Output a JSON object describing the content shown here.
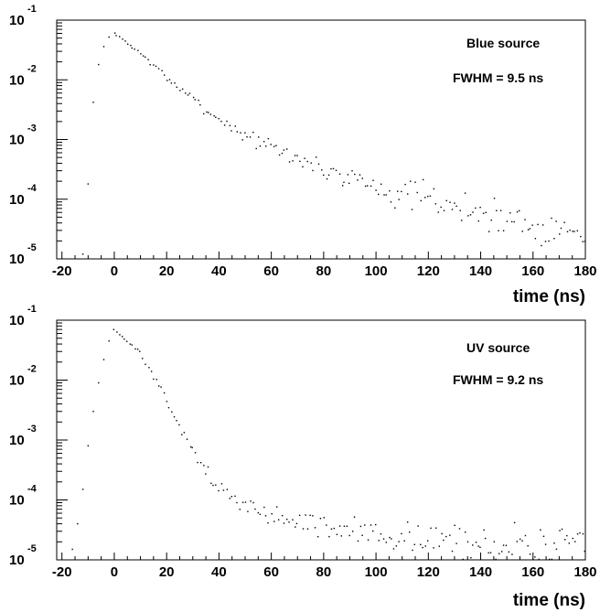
{
  "chart_data": [
    {
      "type": "scatter",
      "title": "",
      "xlabel": "time (ns)",
      "ylabel": "",
      "xlim": [
        -22,
        180
      ],
      "ylim": [
        1e-05,
        0.1
      ],
      "yscale": "log",
      "grid": false,
      "legend": "none",
      "annotations": [
        "Blue source",
        "FWHM = 9.5 ns"
      ],
      "x_ticks": [
        "-20",
        "0",
        "20",
        "40",
        "60",
        "80",
        "100",
        "120",
        "140",
        "160",
        "180"
      ],
      "y_ticks": [
        {
          "base": "10",
          "exp": "-5"
        },
        {
          "base": "10",
          "exp": "-4"
        },
        {
          "base": "10",
          "exp": "-3"
        },
        {
          "base": "10",
          "exp": "-2"
        },
        {
          "base": "10",
          "exp": "-1"
        }
      ],
      "peak": {
        "x": 0,
        "y": 0.06
      },
      "fwhm_ns": 9.5,
      "rise_points": [
        [
          -12,
          1.2e-05
        ],
        [
          -10,
          0.00018
        ],
        [
          -8,
          0.0042
        ],
        [
          -6,
          0.018
        ],
        [
          -4,
          0.036
        ],
        [
          -2,
          0.052
        ]
      ],
      "decay_anchors": [
        [
          0,
          0.06
        ],
        [
          10,
          0.028
        ],
        [
          20,
          0.011
        ],
        [
          30,
          0.0047
        ],
        [
          40,
          0.0022
        ],
        [
          50,
          0.0012
        ],
        [
          60,
          0.00072
        ],
        [
          80,
          0.00032
        ],
        [
          100,
          0.00016
        ],
        [
          120,
          9.5e-05
        ],
        [
          140,
          6e-05
        ],
        [
          160,
          3.8e-05
        ],
        [
          180,
          2.5e-05
        ]
      ],
      "noise_rel": [
        0.02,
        0.4
      ],
      "seed": 7
    },
    {
      "type": "scatter",
      "title": "",
      "xlabel": "time (ns)",
      "ylabel": "",
      "xlim": [
        -22,
        180
      ],
      "ylim": [
        1e-05,
        0.1
      ],
      "yscale": "log",
      "grid": false,
      "legend": "none",
      "annotations": [
        "UV source",
        "FWHM = 9.2 ns"
      ],
      "x_ticks": [
        "-20",
        "0",
        "20",
        "40",
        "60",
        "80",
        "100",
        "120",
        "140",
        "160",
        "180"
      ],
      "y_ticks": [
        {
          "base": "10",
          "exp": "-5"
        },
        {
          "base": "10",
          "exp": "-4"
        },
        {
          "base": "10",
          "exp": "-3"
        },
        {
          "base": "10",
          "exp": "-2"
        },
        {
          "base": "10",
          "exp": "-1"
        }
      ],
      "peak": {
        "x": 0,
        "y": 0.07
      },
      "fwhm_ns": 9.2,
      "rise_points": [
        [
          -16,
          1.5e-05
        ],
        [
          -14,
          4e-05
        ],
        [
          -12,
          0.00015
        ],
        [
          -10,
          0.0008
        ],
        [
          -8,
          0.003
        ],
        [
          -6,
          0.009
        ],
        [
          -4,
          0.022
        ],
        [
          -2,
          0.045
        ]
      ],
      "decay_anchors": [
        [
          0,
          0.07
        ],
        [
          10,
          0.028
        ],
        [
          20,
          0.0045
        ],
        [
          30,
          0.00065
        ],
        [
          40,
          0.00015
        ],
        [
          50,
          8e-05
        ],
        [
          60,
          5.5e-05
        ],
        [
          80,
          3.5e-05
        ],
        [
          100,
          2.6e-05
        ],
        [
          120,
          2.1e-05
        ],
        [
          140,
          1.9e-05
        ],
        [
          160,
          1.7e-05
        ],
        [
          180,
          1.6e-05
        ]
      ],
      "noise_rel": [
        0.02,
        0.45
      ],
      "seed": 13
    }
  ]
}
